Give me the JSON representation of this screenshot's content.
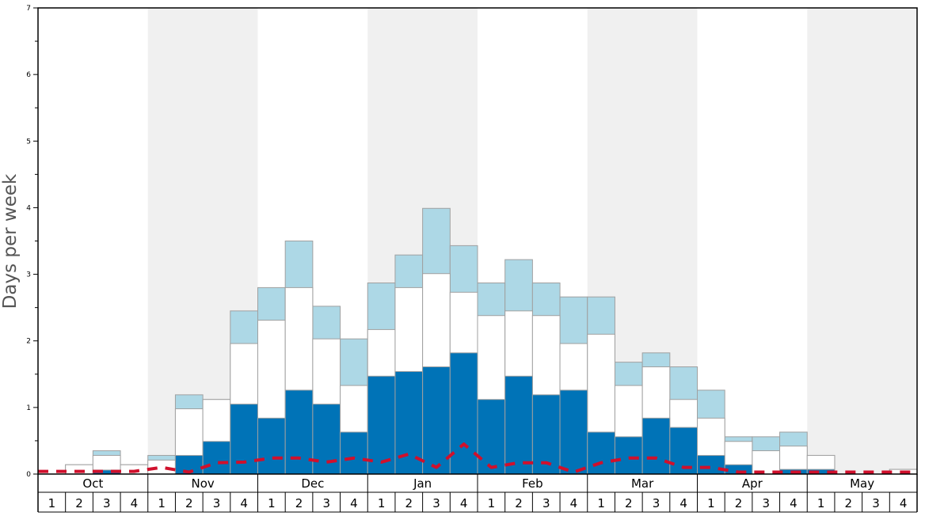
{
  "chart_data": {
    "type": "bar",
    "ylabel": "Days per week",
    "ylim": [
      0,
      7
    ],
    "y_ticks": [
      "0",
      "1",
      "2",
      "3",
      "4",
      "5",
      "6",
      "7"
    ],
    "months": [
      "Oct",
      "Nov",
      "Dec",
      "Jan",
      "Feb",
      "Mar",
      "Apr",
      "May"
    ],
    "week_labels": [
      "1",
      "2",
      "3",
      "4"
    ],
    "month_band_colors": [
      "#ffffff",
      "#f0f0f0"
    ],
    "colors": {
      "dark_segment": "#0073b7",
      "white_segment": "#ffffff",
      "light_segment": "#add8e6",
      "dashed_line": "#d0102c",
      "bar_border": "#a0a0a0"
    },
    "series": [
      {
        "values": [
          0.0,
          0.0,
          0.06,
          0.0,
          0.0,
          0.28,
          0.49,
          1.05,
          0.84,
          1.26,
          1.05,
          0.63,
          1.47,
          1.54,
          1.61,
          1.82,
          1.12,
          1.47,
          1.19,
          1.26,
          0.63,
          0.56,
          0.84,
          0.7,
          0.28,
          0.14,
          0.0,
          0.07,
          0.07,
          0.0,
          0.0,
          0.0
        ]
      },
      {
        "values": [
          0.0,
          0.14,
          0.28,
          0.14,
          0.21,
          0.98,
          1.12,
          1.96,
          2.31,
          2.8,
          2.03,
          1.33,
          2.17,
          2.8,
          3.01,
          2.73,
          2.38,
          2.45,
          2.38,
          1.96,
          2.1,
          1.33,
          1.61,
          1.12,
          0.84,
          0.49,
          0.35,
          0.42,
          0.28,
          0.0,
          0.0,
          0.07
        ]
      },
      {
        "values": [
          0.0,
          0.14,
          0.35,
          0.14,
          0.28,
          1.19,
          1.12,
          2.45,
          2.8,
          3.5,
          2.52,
          2.03,
          2.87,
          3.29,
          3.99,
          3.43,
          2.87,
          3.22,
          2.87,
          2.66,
          2.66,
          1.68,
          1.82,
          1.61,
          1.26,
          0.56,
          0.56,
          0.63,
          0.28,
          0.0,
          0.0,
          0.07
        ]
      },
      {
        "values": [
          0.04,
          0.04,
          0.04,
          0.04,
          0.1,
          0.03,
          0.17,
          0.18,
          0.24,
          0.24,
          0.18,
          0.24,
          0.18,
          0.3,
          0.1,
          0.45,
          0.1,
          0.17,
          0.17,
          0.03,
          0.17,
          0.24,
          0.24,
          0.1,
          0.1,
          0.03,
          0.03,
          0.03,
          0.03,
          0.03,
          0.03,
          0.03
        ]
      }
    ]
  }
}
